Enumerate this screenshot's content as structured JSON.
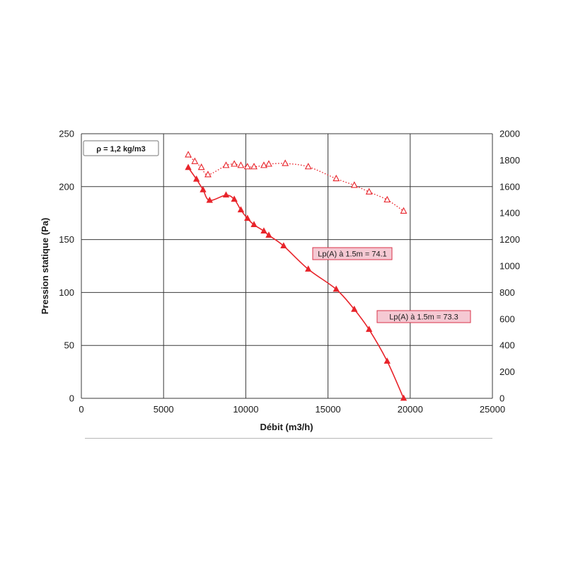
{
  "chart_data": {
    "type": "line",
    "xlabel": "Débit (m3/h)",
    "ylabel": "Pression statique (Pa)",
    "xlim": [
      0,
      25000
    ],
    "ylim": [
      0,
      250
    ],
    "y2lim": [
      0,
      2000
    ],
    "x_ticks": [
      "0",
      "5000",
      "10000",
      "15000",
      "20000",
      "25000"
    ],
    "y_ticks": [
      "0",
      "50",
      "100",
      "150",
      "200",
      "250"
    ],
    "y2_ticks": [
      "0",
      "200",
      "400",
      "600",
      "800",
      "1000",
      "1200",
      "1400",
      "1600",
      "1800",
      "2000"
    ],
    "grid": true,
    "density_note": "ρ = 1,2 kg/m3",
    "annotations": [
      "Lp(A) à 1.5m = 74.1",
      "Lp(A) à 1.5m = 73.3"
    ],
    "colors": {
      "series": "#e8242b",
      "label_fill": "#f5c9d3",
      "label_border": "#d9334a"
    },
    "series": [
      {
        "axis": "left",
        "style": "solid line, filled triangles",
        "x": [
          6500,
          7000,
          7400,
          7800,
          8800,
          9300,
          9700,
          10100,
          10500,
          11100,
          11400,
          12300,
          13800,
          15500,
          16600,
          17500,
          18600,
          19600
        ],
        "y": [
          218,
          207,
          197,
          187,
          192,
          188,
          178,
          170,
          164,
          158,
          154,
          144,
          122,
          103,
          84,
          65,
          35,
          0
        ]
      },
      {
        "axis": "right",
        "style": "dotted line, open triangles",
        "x": [
          6500,
          6900,
          7300,
          7700,
          8800,
          9300,
          9700,
          10100,
          10500,
          11100,
          11400,
          12400,
          13800,
          15500,
          16600,
          17500,
          18600,
          19600
        ],
        "y": [
          1840,
          1790,
          1745,
          1690,
          1760,
          1770,
          1760,
          1750,
          1750,
          1760,
          1770,
          1775,
          1750,
          1660,
          1610,
          1560,
          1500,
          1415
        ]
      }
    ]
  }
}
